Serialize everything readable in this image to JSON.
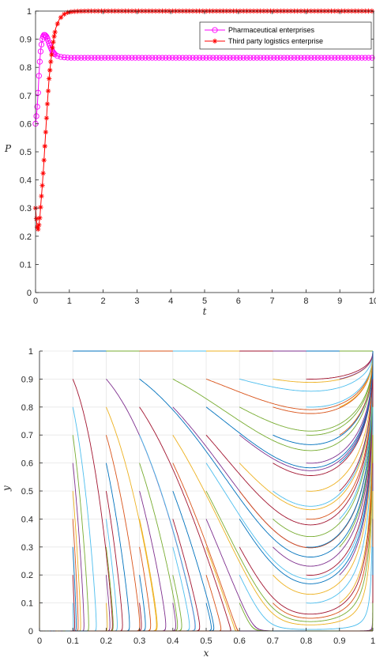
{
  "chart_data": [
    {
      "type": "line",
      "title": "",
      "xlabel": "t",
      "ylabel": "P",
      "xlim": [
        0,
        10
      ],
      "ylim": [
        0,
        1
      ],
      "xticks": [
        0,
        1,
        2,
        3,
        4,
        5,
        6,
        7,
        8,
        9,
        10
      ],
      "yticks": [
        0,
        0.1,
        0.2,
        0.3,
        0.4,
        0.5,
        0.6,
        0.7,
        0.8,
        0.9,
        1
      ],
      "xtick_labels": [
        "0",
        "1",
        "2",
        "3",
        "4",
        "5",
        "6",
        "7",
        "8",
        "9",
        "10"
      ],
      "ytick_labels": [
        "0",
        "0.1",
        "0.2",
        "0.3",
        "0.4",
        "0.5",
        "0.6",
        "0.7",
        "0.8",
        "0.9",
        "1"
      ],
      "legend_position": "top-right",
      "series": [
        {
          "name": "Pharmaceutical enterprises",
          "color": "#ff00ff",
          "marker": "circle",
          "x": [
            0,
            0.02,
            0.05,
            0.08,
            0.1,
            0.13,
            0.16,
            0.2,
            0.24,
            0.28,
            0.32,
            0.36,
            0.4,
            0.45,
            0.5,
            0.55,
            0.6,
            0.7,
            0.8,
            0.9,
            1.0,
            1.2,
            1.5,
            2,
            3,
            4,
            5,
            6,
            7,
            8,
            9,
            10
          ],
          "y": [
            0.6,
            0.62,
            0.66,
            0.72,
            0.77,
            0.83,
            0.87,
            0.9,
            0.915,
            0.915,
            0.91,
            0.9,
            0.885,
            0.87,
            0.857,
            0.849,
            0.843,
            0.838,
            0.836,
            0.835,
            0.834,
            0.834,
            0.834,
            0.834,
            0.834,
            0.834,
            0.834,
            0.834,
            0.834,
            0.834,
            0.834,
            0.834
          ]
        },
        {
          "name": "Third party logistics enterprise",
          "color": "#ff0000",
          "marker": "star",
          "x": [
            0,
            0.02,
            0.04,
            0.06,
            0.08,
            0.1,
            0.13,
            0.16,
            0.2,
            0.24,
            0.28,
            0.32,
            0.36,
            0.4,
            0.45,
            0.5,
            0.55,
            0.6,
            0.7,
            0.8,
            0.9,
            1.0,
            1.2,
            1.5,
            2,
            3,
            4,
            5,
            6,
            7,
            8,
            9,
            10
          ],
          "y": [
            0.3,
            0.27,
            0.24,
            0.225,
            0.225,
            0.24,
            0.27,
            0.32,
            0.38,
            0.45,
            0.53,
            0.61,
            0.69,
            0.76,
            0.82,
            0.87,
            0.91,
            0.94,
            0.97,
            0.985,
            0.993,
            0.997,
            0.999,
            1.0,
            1.0,
            1.0,
            1.0,
            1.0,
            1.0,
            1.0,
            1.0,
            1.0,
            1.0
          ]
        }
      ]
    },
    {
      "type": "line",
      "title": "",
      "xlabel": "x",
      "ylabel": "y",
      "xlim": [
        0,
        1
      ],
      "ylim": [
        0,
        1
      ],
      "xticks": [
        0,
        0.1,
        0.2,
        0.3,
        0.4,
        0.5,
        0.6,
        0.7,
        0.8,
        0.9,
        1
      ],
      "yticks": [
        0,
        0.1,
        0.2,
        0.3,
        0.4,
        0.5,
        0.6,
        0.7,
        0.8,
        0.9,
        1
      ],
      "xtick_labels": [
        "0",
        "0.1",
        "0.2",
        "0.3",
        "0.4",
        "0.5",
        "0.6",
        "0.7",
        "0.8",
        "0.9",
        "1"
      ],
      "ytick_labels": [
        "0",
        "0.1",
        "0.2",
        "0.3",
        "0.4",
        "0.5",
        "0.6",
        "0.7",
        "0.8",
        "0.9",
        "1"
      ],
      "grid": true,
      "description": "Phase-space trajectories from a grid of initial points (x0, y0) in steps of 0.1, all converging to (1, 1)",
      "x0_values": [
        0,
        0.1,
        0.2,
        0.3,
        0.4,
        0.5,
        0.6,
        0.7,
        0.8,
        0.9,
        1
      ],
      "y0_values": [
        0,
        0.1,
        0.2,
        0.3,
        0.4,
        0.5,
        0.6,
        0.7,
        0.8,
        0.9,
        1
      ],
      "converge_point": [
        1,
        1
      ],
      "colors": [
        "#0072bd",
        "#d95319",
        "#edb120",
        "#7e2f8e",
        "#77ac30",
        "#4dbeee",
        "#a2142f"
      ]
    }
  ]
}
